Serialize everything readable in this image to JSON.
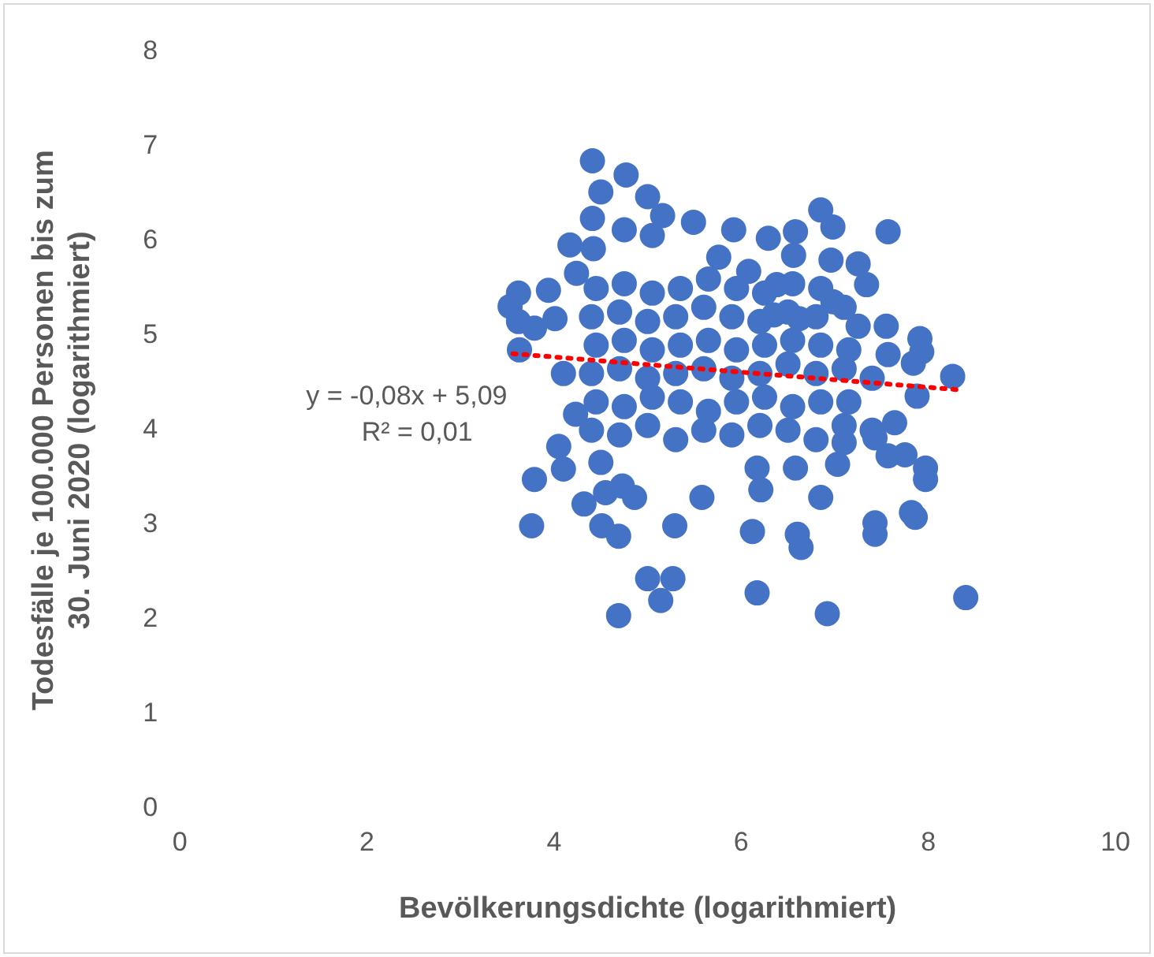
{
  "chart_data": {
    "type": "scatter",
    "xlabel": "Bevölkerungsdichte (logarithmiert)",
    "ylabel": "Todesfälle je 100.000 Personen bis zum\n30. Juni 2020 (logarithmiert)",
    "xlim": [
      0,
      10
    ],
    "xticks": [
      0,
      2,
      4,
      6,
      8,
      10
    ],
    "ylim": [
      0,
      8
    ],
    "yticks": [
      0,
      1,
      2,
      3,
      4,
      5,
      6,
      7,
      8
    ],
    "grid": false,
    "legend": false,
    "marker": "circle",
    "annotations": [
      "y = -0,08x + 5,09",
      "R² = 0,01"
    ],
    "series": [
      {
        "color": "#4472c4",
        "x": [
          4.41,
          4.77,
          4.5,
          5.0,
          5.16,
          4.41,
          5.49,
          4.75,
          5.92,
          6.29,
          5.05,
          4.17,
          4.42,
          5.76,
          6.08,
          3.62,
          3.94,
          3.53,
          3.62,
          3.79,
          4.01,
          4.24,
          3.63,
          4.1,
          4.23,
          4.05,
          4.1,
          3.79,
          4.5,
          4.32,
          4.55,
          4.73,
          4.86,
          3.76,
          4.51,
          4.69,
          5.29,
          5.0,
          5.27,
          5.14,
          4.69,
          6.12,
          6.17,
          5.58,
          6.21,
          6.17,
          6.85,
          6.98,
          7.57,
          6.58,
          6.56,
          6.96,
          7.25,
          7.34,
          6.38,
          6.98,
          6.35,
          6.62,
          7.25,
          7.55,
          7.91,
          7.93,
          7.57,
          7.84,
          8.26,
          7.88,
          7.64,
          7.43,
          7.1,
          7.03,
          6.58,
          7.57,
          7.75,
          7.97,
          7.97,
          6.85,
          7.43,
          7.43,
          7.82,
          7.86,
          6.6,
          6.64,
          8.4,
          6.92,
          4.4,
          4.7,
          5.0,
          5.3,
          5.6,
          5.9,
          6.2,
          6.5,
          6.8,
          7.1,
          7.4,
          4.45,
          4.75,
          5.05,
          5.35,
          5.65,
          5.95,
          6.25,
          6.55,
          6.85,
          7.15,
          4.4,
          4.7,
          5.0,
          5.3,
          5.6,
          5.9,
          6.2,
          6.5,
          6.8,
          7.1,
          7.4,
          4.45,
          4.75,
          5.05,
          5.35,
          5.65,
          5.95,
          6.25,
          6.55,
          6.85,
          7.15,
          4.4,
          4.7,
          5.0,
          5.3,
          5.6,
          5.9,
          6.2,
          6.5,
          6.8,
          7.1,
          4.45,
          4.75,
          5.05,
          5.35,
          5.65,
          5.95,
          6.25,
          6.55,
          6.85
        ],
        "values": [
          6.85,
          6.7,
          6.52,
          6.47,
          6.27,
          6.24,
          6.2,
          6.12,
          6.12,
          6.03,
          6.06,
          5.96,
          5.92,
          5.83,
          5.68,
          5.45,
          5.48,
          5.31,
          5.15,
          5.08,
          5.18,
          5.66,
          4.85,
          4.6,
          4.17,
          3.83,
          3.59,
          3.48,
          3.66,
          3.22,
          3.34,
          3.41,
          3.29,
          2.99,
          2.99,
          2.88,
          2.99,
          2.43,
          2.43,
          2.2,
          2.04,
          2.93,
          2.28,
          3.29,
          3.37,
          3.6,
          6.33,
          6.15,
          6.1,
          6.1,
          5.85,
          5.8,
          5.76,
          5.54,
          5.54,
          5.36,
          5.22,
          5.18,
          5.1,
          5.1,
          4.97,
          4.83,
          4.8,
          4.71,
          4.57,
          4.36,
          4.08,
          3.92,
          3.87,
          3.64,
          3.6,
          3.73,
          3.74,
          3.6,
          3.48,
          3.29,
          3.02,
          2.9,
          3.13,
          3.08,
          2.9,
          2.76,
          2.23,
          2.06,
          4.0,
          3.95,
          4.05,
          3.9,
          4.0,
          3.95,
          4.05,
          4.0,
          3.9,
          4.05,
          4.0,
          4.3,
          4.25,
          4.35,
          4.3,
          4.2,
          4.3,
          4.35,
          4.25,
          4.3,
          4.3,
          4.6,
          4.65,
          4.55,
          4.6,
          4.65,
          4.55,
          4.6,
          4.7,
          4.6,
          4.65,
          4.55,
          4.9,
          4.95,
          4.85,
          4.9,
          4.95,
          4.85,
          4.9,
          4.95,
          4.9,
          4.85,
          5.2,
          5.25,
          5.15,
          5.2,
          5.3,
          5.2,
          5.15,
          5.25,
          5.2,
          5.3,
          5.5,
          5.55,
          5.45,
          5.5,
          5.6,
          5.5,
          5.45,
          5.55,
          5.5
        ]
      },
      {
        "type": "line",
        "color": "#ff0000",
        "line_style": "dotted",
        "marker": "none",
        "x": [
          3.56,
          8.3
        ],
        "values": [
          4.81,
          4.43
        ]
      }
    ]
  }
}
